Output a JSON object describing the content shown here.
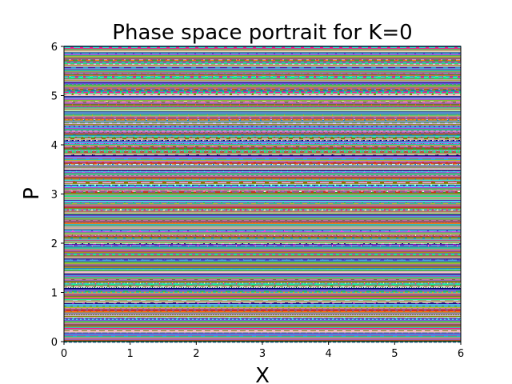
{
  "chart_data": {
    "type": "scatter",
    "title": "Phase space portrait for K=0",
    "xlabel": "X",
    "ylabel": "P",
    "xlim": [
      0,
      6
    ],
    "ylim": [
      0,
      6
    ],
    "xticks": [
      "0",
      "1",
      "2",
      "3",
      "4",
      "5",
      "6"
    ],
    "yticks": [
      "0",
      "1",
      "2",
      "3",
      "4",
      "5",
      "6"
    ],
    "grid": false,
    "legend": "none",
    "description_of_data": "Many trajectories of the standard map with K=0; each trajectory has constant momentum P and X spread across [0,6], producing horizontal multicolored lines.",
    "trajectory_p_values_step": 0.0125,
    "trajectory_p_range": [
      0,
      6
    ],
    "series_colors": [
      "#1f77b4",
      "#ff7f0e",
      "#2ca02c",
      "#d62728",
      "#9467bd",
      "#8c564b",
      "#e377c2",
      "#7f7f7f",
      "#bcbd22",
      "#17becf",
      "#3cb44b",
      "#f032e6",
      "#4363d8",
      "#46f0f0",
      "#911eb4",
      "#000075",
      "#aaffc3",
      "#fabebe",
      "#808000",
      "#e6beff",
      "#9a6324",
      "#00ff7f",
      "#ff1493",
      "#40e0d0"
    ]
  }
}
